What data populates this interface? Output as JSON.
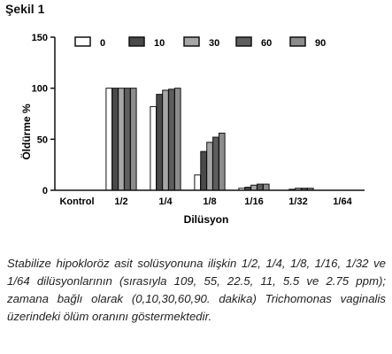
{
  "figure_label": "Şekil 1",
  "caption": "Stabilize hipokloröz asit solüsyonuna ilişkin 1/2, 1/4, 1/8, 1/16, 1/32 ve 1/64 dilüsyonlarının (sırasıyla 109, 55, 22.5, 11, 5.5 ve 2.75 ppm); zamana bağlı olarak (0,10,30,60,90. dakika) Trichomonas vaginalis üzerindeki ölüm oranını göstermektedir.",
  "chart_data": {
    "type": "bar",
    "title": "",
    "xlabel": "Dilüsyon",
    "ylabel": "Öldürme %",
    "ylim": [
      0,
      150
    ],
    "yticks": [
      0,
      50,
      100,
      150
    ],
    "legend_position": "top",
    "categories": [
      "Kontrol",
      "1/2",
      "1/4",
      "1/8",
      "1/16",
      "1/32",
      "1/64"
    ],
    "series": [
      {
        "name": "0",
        "color": "#ffffff",
        "values": [
          0,
          100,
          82,
          15,
          2,
          0,
          0
        ]
      },
      {
        "name": "10",
        "color": "#4a4a4a",
        "values": [
          0,
          100,
          94,
          38,
          3,
          1,
          0
        ]
      },
      {
        "name": "30",
        "color": "#a6a6a6",
        "values": [
          0,
          100,
          98,
          47,
          5,
          2,
          0
        ]
      },
      {
        "name": "60",
        "color": "#5e5e5e",
        "values": [
          0,
          100,
          99,
          52,
          6,
          2,
          0
        ]
      },
      {
        "name": "90",
        "color": "#8c8c8c",
        "values": [
          0,
          100,
          100,
          56,
          6,
          2,
          0
        ]
      }
    ]
  }
}
